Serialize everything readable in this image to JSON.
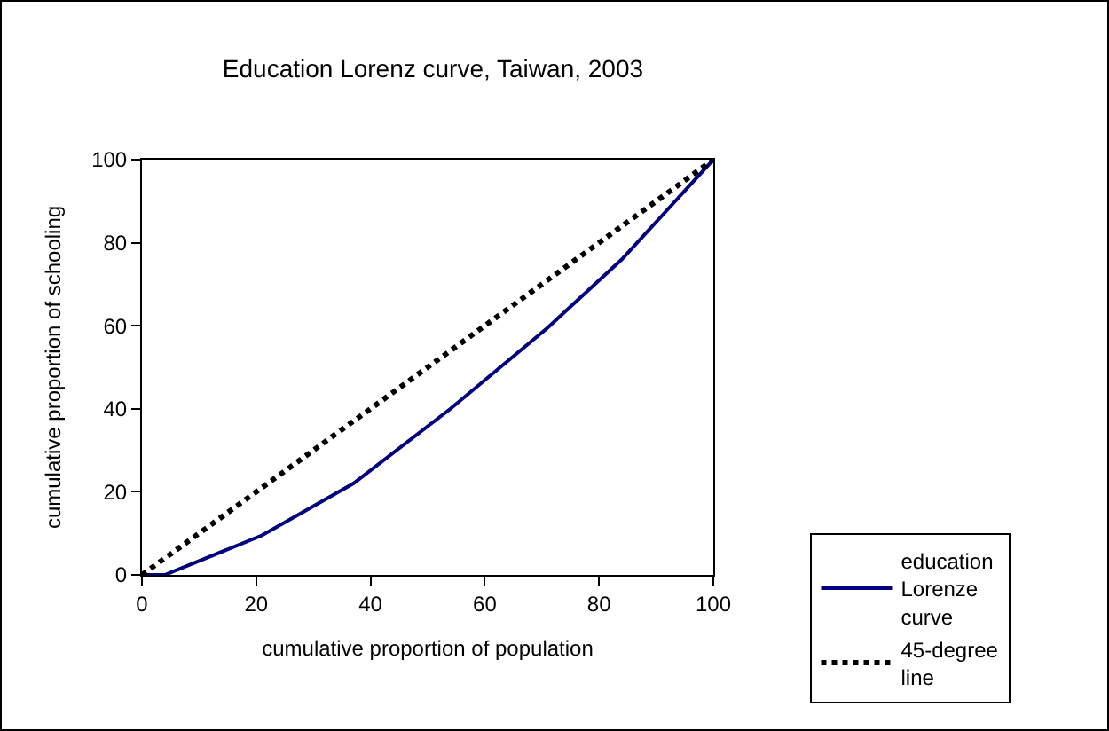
{
  "chart_data": {
    "type": "line",
    "title": "Education Lorenz curve, Taiwan, 2003",
    "xlabel": "cumulative proportion of population",
    "ylabel": "cumulative proportion of schooling",
    "xlim": [
      0,
      100
    ],
    "xticks": [
      0,
      20,
      40,
      60,
      80,
      100
    ],
    "ylim": [
      0,
      100
    ],
    "yticks": [
      0,
      20,
      40,
      60,
      80,
      100
    ],
    "grid": false,
    "legend": "bottom right",
    "marker": "none",
    "series": [
      {
        "name": "education Lorenze curve",
        "color": "#000080",
        "line_style": "solid",
        "x": [
          0,
          4,
          21,
          37,
          54,
          71,
          84,
          100
        ],
        "values": [
          0,
          0,
          9.5,
          22,
          40,
          59.5,
          76,
          100
        ]
      },
      {
        "name": "45-degree line",
        "color": "#000000",
        "line_style": "dotted",
        "x": [
          0,
          100
        ],
        "values": [
          0,
          100
        ]
      }
    ]
  }
}
